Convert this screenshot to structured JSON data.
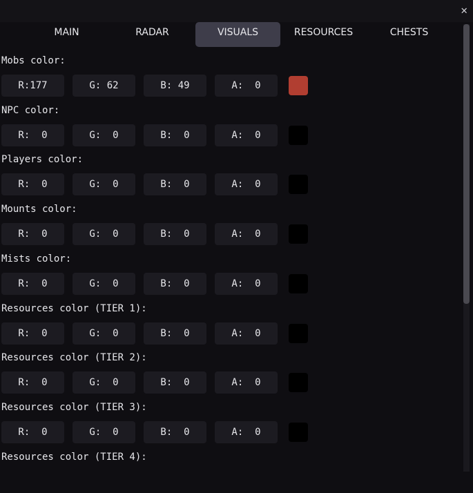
{
  "tabs": [
    {
      "label": "MAIN"
    },
    {
      "label": "RADAR"
    },
    {
      "label": "VISUALS",
      "active": true
    },
    {
      "label": "RESOURCES"
    },
    {
      "label": "CHESTS"
    }
  ],
  "close_icon": "close-icon",
  "groups": [
    {
      "label": "Mobs color:",
      "r": "R:177",
      "g": "G: 62",
      "b": "B: 49",
      "a": "A:  0",
      "swatch": "#b13e31"
    },
    {
      "label": "NPC color:",
      "r": "R:  0",
      "g": "G:  0",
      "b": "B:  0",
      "a": "A:  0",
      "swatch": "#000000"
    },
    {
      "label": "Players color:",
      "r": "R:  0",
      "g": "G:  0",
      "b": "B:  0",
      "a": "A:  0",
      "swatch": "#000000"
    },
    {
      "label": "Mounts color:",
      "r": "R:  0",
      "g": "G:  0",
      "b": "B:  0",
      "a": "A:  0",
      "swatch": "#000000"
    },
    {
      "label": "Mists color:",
      "r": "R:  0",
      "g": "G:  0",
      "b": "B:  0",
      "a": "A:  0",
      "swatch": "#000000"
    },
    {
      "label": "Resources color (TIER 1):",
      "r": "R:  0",
      "g": "G:  0",
      "b": "B:  0",
      "a": "A:  0",
      "swatch": "#000000"
    },
    {
      "label": "Resources color (TIER 2):",
      "r": "R:  0",
      "g": "G:  0",
      "b": "B:  0",
      "a": "A:  0",
      "swatch": "#000000"
    },
    {
      "label": "Resources color (TIER 3):",
      "r": "R:  0",
      "g": "G:  0",
      "b": "B:  0",
      "a": "A:  0",
      "swatch": "#000000"
    },
    {
      "label": "Resources color (TIER 4):",
      "r": "",
      "g": "",
      "b": "",
      "a": "",
      "swatch": ""
    }
  ]
}
